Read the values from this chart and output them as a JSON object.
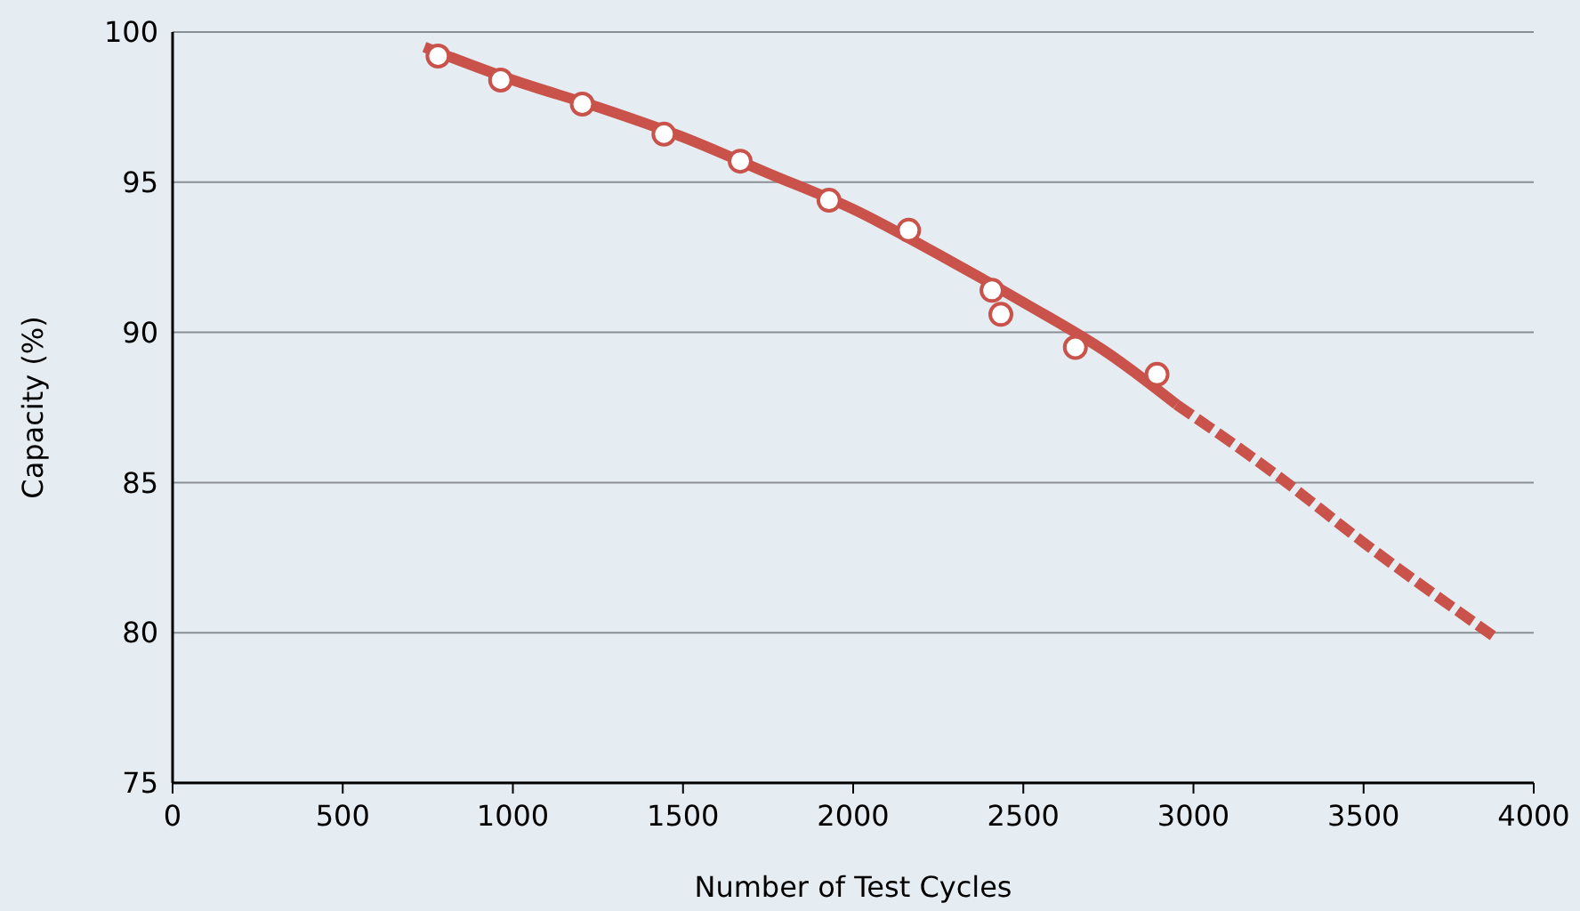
{
  "chart_data": {
    "type": "line",
    "xlabel": "Number of Test Cycles",
    "ylabel": "Capacity (%)",
    "xlim": [
      0,
      4000
    ],
    "xticks": [
      0,
      500,
      1000,
      1500,
      2000,
      2500,
      3000,
      3500,
      4000
    ],
    "ylim": [
      75,
      100
    ],
    "yticks": [
      75,
      80,
      85,
      90,
      95,
      100
    ],
    "grid": "y",
    "series": [
      {
        "color": "#c9524a",
        "line_style": "solid",
        "marker": "none",
        "x": [
          740,
          1000,
          1250,
          1500,
          1750,
          2000,
          2250,
          2500,
          2750,
          2950
        ],
        "values": [
          99.5,
          98.4,
          97.5,
          96.5,
          95.3,
          94.1,
          92.6,
          91.0,
          89.3,
          87.6
        ]
      },
      {
        "color": "#c9524a",
        "line_style": "dashed",
        "marker": "none",
        "x": [
          2950,
          3250,
          3500,
          3880
        ],
        "values": [
          87.6,
          85.2,
          83.0,
          79.9
        ]
      },
      {
        "type": "scatter",
        "color": "#c9524a",
        "marker": "circle",
        "x": [
          780,
          964,
          1204,
          1444,
          1668,
          1929,
          2163,
          2408,
          2434,
          2653,
          2893
        ],
        "values": [
          99.2,
          98.4,
          97.6,
          96.6,
          95.7,
          94.4,
          93.4,
          91.4,
          90.6,
          89.5,
          88.6
        ]
      }
    ]
  }
}
